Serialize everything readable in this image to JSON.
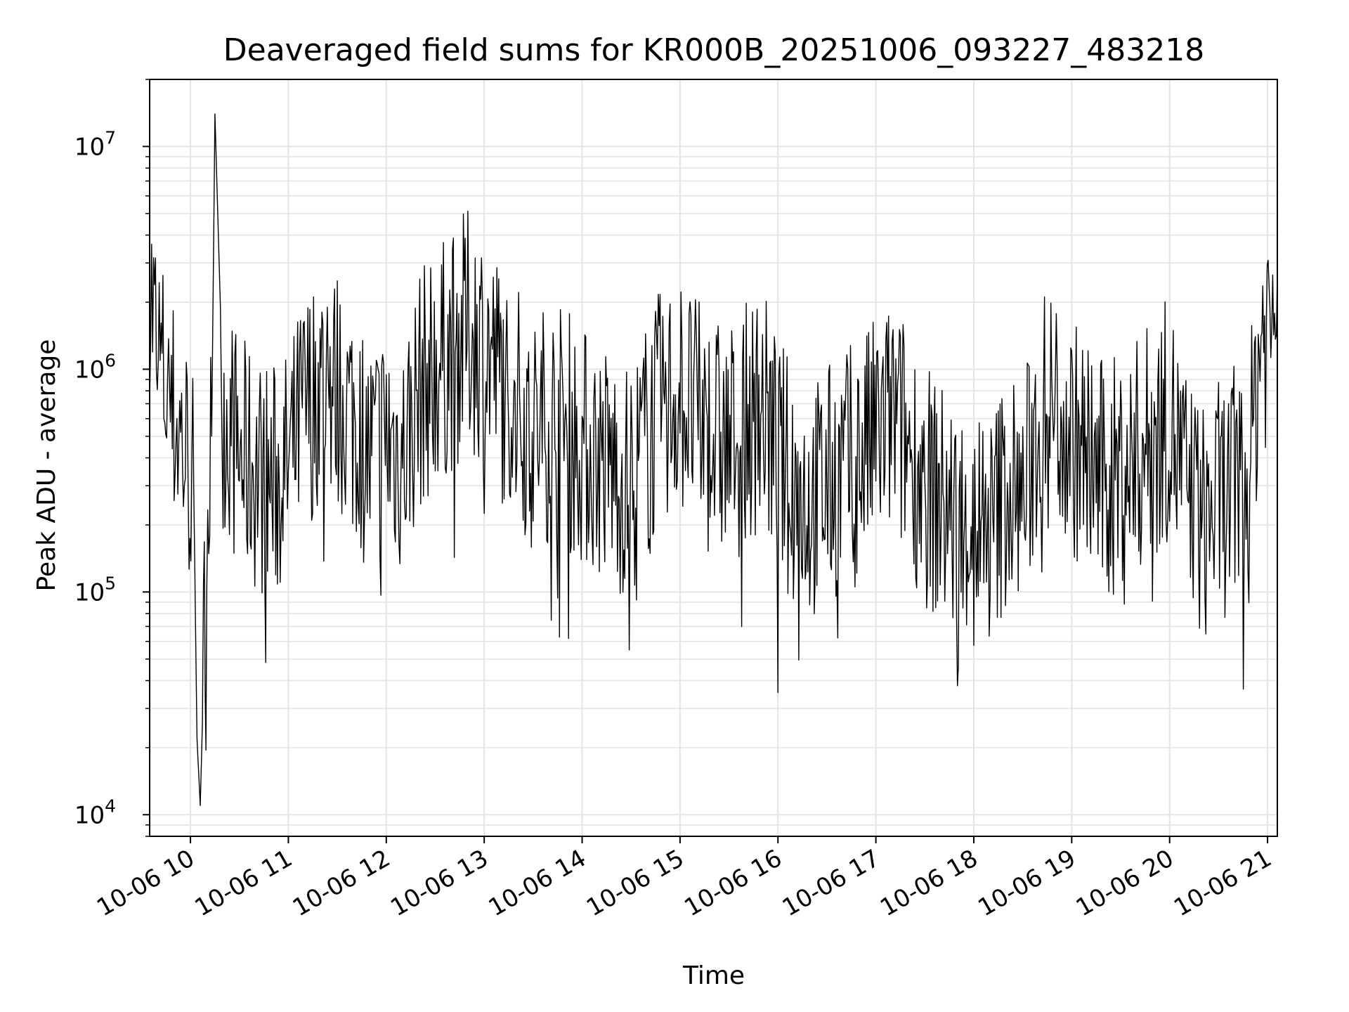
{
  "chart_data": {
    "type": "line",
    "title": "Deaveraged field sums for KR000B_20251006_093227_483218",
    "xlabel": "Time",
    "ylabel": "Peak ADU - average",
    "y_scale": "log",
    "ylim": [
      8000,
      20000000
    ],
    "xlim": [
      "2025-10-06 09:35",
      "2025-10-06 21:06"
    ],
    "grid": true,
    "line_color": "#000000",
    "x_ticks": [
      {
        "time": "2025-10-06 10:00",
        "label": "10-06 10"
      },
      {
        "time": "2025-10-06 11:00",
        "label": "10-06 11"
      },
      {
        "time": "2025-10-06 12:00",
        "label": "10-06 12"
      },
      {
        "time": "2025-10-06 13:00",
        "label": "10-06 13"
      },
      {
        "time": "2025-10-06 14:00",
        "label": "10-06 14"
      },
      {
        "time": "2025-10-06 15:00",
        "label": "10-06 15"
      },
      {
        "time": "2025-10-06 16:00",
        "label": "10-06 16"
      },
      {
        "time": "2025-10-06 17:00",
        "label": "10-06 17"
      },
      {
        "time": "2025-10-06 18:00",
        "label": "10-06 18"
      },
      {
        "time": "2025-10-06 19:00",
        "label": "10-06 19"
      },
      {
        "time": "2025-10-06 20:00",
        "label": "10-06 20"
      },
      {
        "time": "2025-10-06 21:00",
        "label": "10-06 21"
      }
    ],
    "y_ticks": [
      {
        "value": 10000,
        "base": "10",
        "exp": "4"
      },
      {
        "value": 100000,
        "base": "10",
        "exp": "5"
      },
      {
        "value": 1000000,
        "base": "10",
        "exp": "6"
      },
      {
        "value": 10000000,
        "base": "10",
        "exp": "7"
      }
    ],
    "series": [
      {
        "x": [
          "2025-10-06 09:35",
          "2025-10-06 09:38",
          "2025-10-06 09:42",
          "2025-10-06 09:46",
          "2025-10-06 09:50",
          "2025-10-06 09:54",
          "2025-10-06 09:58",
          "2025-10-06 10:02",
          "2025-10-06 10:04",
          "2025-10-06 10:06",
          "2025-10-06 10:08",
          "2025-10-06 10:10",
          "2025-10-06 10:13",
          "2025-10-06 10:15",
          "2025-10-06 10:20",
          "2025-10-06 10:30",
          "2025-10-06 10:40",
          "2025-10-06 10:50",
          "2025-10-06 11:00",
          "2025-10-06 11:08",
          "2025-10-06 11:20",
          "2025-10-06 11:30",
          "2025-10-06 11:40",
          "2025-10-06 11:50",
          "2025-10-06 12:00",
          "2025-10-06 12:10",
          "2025-10-06 12:20",
          "2025-10-06 12:30",
          "2025-10-06 12:40",
          "2025-10-06 12:50",
          "2025-10-06 13:00",
          "2025-10-06 13:10",
          "2025-10-06 13:20",
          "2025-10-06 13:30",
          "2025-10-06 13:40",
          "2025-10-06 13:50",
          "2025-10-06 14:00",
          "2025-10-06 14:10",
          "2025-10-06 14:20",
          "2025-10-06 14:30",
          "2025-10-06 14:40",
          "2025-10-06 14:50",
          "2025-10-06 15:00",
          "2025-10-06 15:10",
          "2025-10-06 15:20",
          "2025-10-06 15:30",
          "2025-10-06 15:40",
          "2025-10-06 15:50",
          "2025-10-06 16:00",
          "2025-10-06 16:10",
          "2025-10-06 16:20",
          "2025-10-06 16:30",
          "2025-10-06 16:40",
          "2025-10-06 16:50",
          "2025-10-06 17:00",
          "2025-10-06 17:10",
          "2025-10-06 17:20",
          "2025-10-06 17:30",
          "2025-10-06 17:40",
          "2025-10-06 17:50",
          "2025-10-06 18:00",
          "2025-10-06 18:10",
          "2025-10-06 18:20",
          "2025-10-06 18:30",
          "2025-10-06 18:40",
          "2025-10-06 18:50",
          "2025-10-06 19:00",
          "2025-10-06 19:10",
          "2025-10-06 19:20",
          "2025-10-06 19:30",
          "2025-10-06 19:40",
          "2025-10-06 19:50",
          "2025-10-06 20:00",
          "2025-10-06 20:10",
          "2025-10-06 20:20",
          "2025-10-06 20:30",
          "2025-10-06 20:40",
          "2025-10-06 20:48",
          "2025-10-06 20:56",
          "2025-10-06 21:02",
          "2025-10-06 21:06"
        ],
        "y": [
          2500000,
          1500000,
          1000000,
          800000,
          600000,
          500000,
          400000,
          300000,
          22000,
          11000,
          40000,
          200000,
          500000,
          14000000,
          700000,
          400000,
          350000,
          300000,
          350000,
          600000,
          900000,
          800000,
          600000,
          400000,
          500000,
          400000,
          800000,
          1000000,
          1200000,
          1500000,
          1300000,
          900000,
          700000,
          500000,
          600000,
          550000,
          450000,
          400000,
          350000,
          300000,
          500000,
          700000,
          800000,
          600000,
          500000,
          450000,
          550000,
          700000,
          400000,
          300000,
          250000,
          300000,
          350000,
          400000,
          500000,
          600000,
          450000,
          300000,
          250000,
          200000,
          220000,
          180000,
          300000,
          250000,
          600000,
          700000,
          500000,
          400000,
          300000,
          350000,
          400000,
          500000,
          600000,
          300000,
          200000,
          250000,
          300000,
          280000,
          1500000,
          1600000,
          2800000
        ]
      }
    ]
  }
}
